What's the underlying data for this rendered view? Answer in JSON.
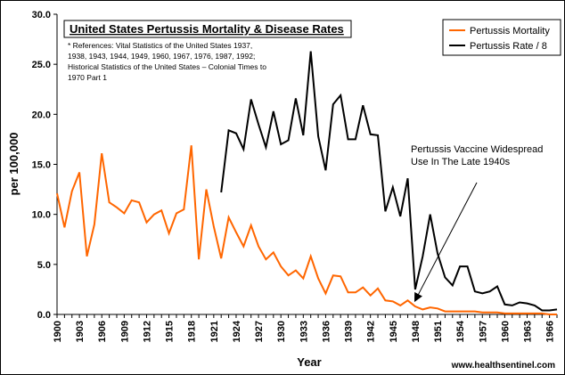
{
  "chart_data": {
    "type": "line",
    "title": "United States Pertussis Mortality & Disease Rates",
    "references": [
      "* References: Vital Statistics of the United States 1937,",
      "1938, 1943, 1944, 1949, 1960, 1967, 1976, 1987, 1992;",
      "Historical Statistics of the United States – Colonial Times to",
      "1970 Part 1"
    ],
    "xlabel": "Year",
    "ylabel": "per 100,000",
    "ylim": [
      0,
      30
    ],
    "y_ticks": [
      "0.0",
      "5.0",
      "10.0",
      "15.0",
      "20.0",
      "25.0",
      "30.0"
    ],
    "x_tick_labels": [
      "1900",
      "1903",
      "1906",
      "1909",
      "1912",
      "1915",
      "1918",
      "1921",
      "1924",
      "1927",
      "1930",
      "1933",
      "1936",
      "1939",
      "1942",
      "1945",
      "1948",
      "1951",
      "1954",
      "1957",
      "1960",
      "1963",
      "1966"
    ],
    "xlim": [
      1900,
      1967
    ],
    "series": [
      {
        "name": "Pertussis Mortality",
        "color": "#FF6600",
        "x": [
          1900,
          1901,
          1902,
          1903,
          1904,
          1905,
          1906,
          1907,
          1908,
          1909,
          1910,
          1911,
          1912,
          1913,
          1914,
          1915,
          1916,
          1917,
          1918,
          1919,
          1920,
          1921,
          1922,
          1923,
          1924,
          1925,
          1926,
          1927,
          1928,
          1929,
          1930,
          1931,
          1932,
          1933,
          1934,
          1935,
          1936,
          1937,
          1938,
          1939,
          1940,
          1941,
          1942,
          1943,
          1944,
          1945,
          1946,
          1947,
          1948,
          1949,
          1950,
          1951,
          1952,
          1953,
          1954,
          1955,
          1956,
          1957,
          1958,
          1959,
          1960,
          1961,
          1962,
          1963,
          1964,
          1965,
          1966,
          1967
        ],
        "y": [
          12.1,
          8.7,
          12.3,
          14.2,
          5.8,
          9.0,
          16.1,
          11.2,
          10.7,
          10.1,
          11.4,
          11.2,
          9.2,
          10.0,
          10.4,
          8.1,
          10.1,
          10.5,
          16.9,
          5.5,
          12.5,
          8.8,
          5.6,
          9.7,
          8.2,
          6.8,
          8.9,
          6.8,
          5.5,
          6.2,
          4.8,
          3.9,
          4.4,
          3.6,
          5.8,
          3.6,
          2.1,
          3.9,
          3.8,
          2.2,
          2.2,
          2.7,
          1.9,
          2.6,
          1.4,
          1.3,
          0.9,
          1.4,
          0.8,
          0.5,
          0.7,
          0.6,
          0.3,
          0.3,
          0.3,
          0.3,
          0.3,
          0.2,
          0.2,
          0.2,
          0.1,
          0.1,
          0.1,
          0.1,
          0.1,
          0.1,
          0.0,
          0.0
        ]
      },
      {
        "name": "Pertussis Rate / 8",
        "color": "#000000",
        "x": [
          1922,
          1923,
          1924,
          1925,
          1926,
          1927,
          1928,
          1929,
          1930,
          1931,
          1932,
          1933,
          1934,
          1935,
          1936,
          1937,
          1938,
          1939,
          1940,
          1941,
          1942,
          1943,
          1944,
          1945,
          1946,
          1947,
          1948,
          1949,
          1950,
          1951,
          1952,
          1953,
          1954,
          1955,
          1956,
          1957,
          1958,
          1959,
          1960,
          1961,
          1962,
          1963,
          1964,
          1965,
          1966,
          1967
        ],
        "y": [
          12.2,
          18.4,
          18.1,
          16.5,
          21.5,
          19.0,
          16.7,
          20.3,
          17.0,
          17.4,
          21.6,
          17.9,
          26.3,
          17.8,
          14.4,
          21.0,
          21.9,
          17.5,
          17.5,
          20.9,
          18.0,
          17.9,
          10.3,
          12.7,
          9.8,
          13.6,
          2.5,
          5.8,
          10.0,
          6.1,
          3.7,
          2.9,
          4.8,
          4.8,
          2.3,
          2.1,
          2.3,
          2.8,
          1.0,
          0.9,
          1.2,
          1.1,
          0.9,
          0.4,
          0.4,
          0.5
        ]
      }
    ],
    "annotation": {
      "lines": [
        "Pertussis Vaccine Widespread",
        "Use In The Late 1940s"
      ],
      "arrow_to_year": 1948,
      "arrow_to_value": 1.4
    },
    "watermark": "www.healthsentinel.com",
    "legend_position": "top-right"
  }
}
